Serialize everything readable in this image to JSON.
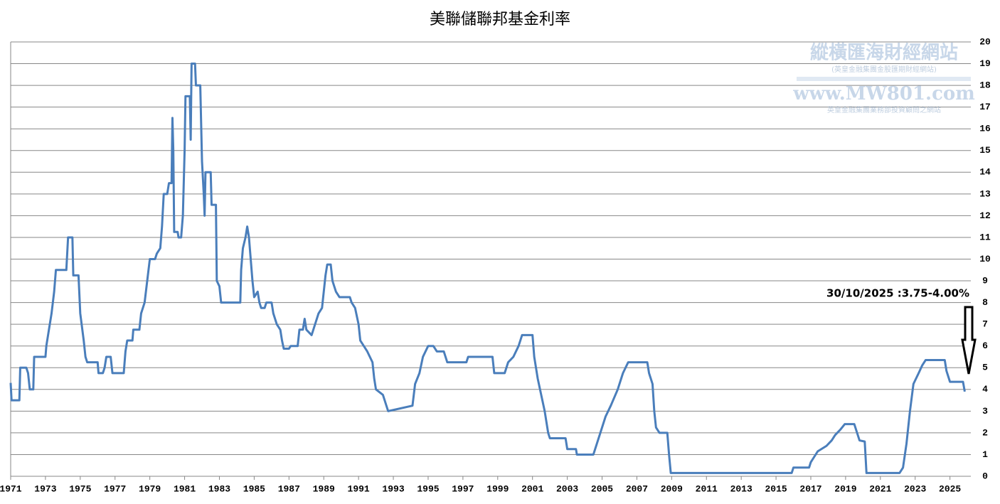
{
  "chart_data": {
    "type": "line",
    "title": "美聯儲聯邦基金利率",
    "annotation": "30/10/2025 :3.75-4.00%",
    "watermark": [
      "縱橫匯海財經網站",
      "(英皇金融集團金股匯期財經網站)",
      "www.MW801.com",
      "英皇金融集團業務部投資顧問之網站"
    ],
    "xlim": [
      1971,
      2026.2
    ],
    "xticks": [
      1971,
      1973,
      1975,
      1977,
      1979,
      1981,
      1983,
      1985,
      1987,
      1989,
      1991,
      1993,
      1995,
      1997,
      1999,
      2001,
      2003,
      2005,
      2007,
      2009,
      2011,
      2013,
      2015,
      2017,
      2019,
      2021,
      2023,
      2025
    ],
    "ylim": [
      0,
      20
    ],
    "yticks": [
      0,
      1,
      2,
      3,
      4,
      5,
      6,
      7,
      8,
      9,
      10,
      11,
      12,
      13,
      14,
      15,
      16,
      17,
      18,
      19,
      20
    ],
    "grid": true,
    "y_axis_side": "right",
    "x": [
      1971.0,
      1971.05,
      1971.5,
      1971.55,
      1971.9,
      1972.0,
      1972.1,
      1972.3,
      1972.35,
      1973.0,
      1973.05,
      1973.2,
      1973.35,
      1973.5,
      1973.6,
      1974.2,
      1974.3,
      1974.55,
      1974.6,
      1974.9,
      1975.0,
      1975.2,
      1975.3,
      1975.4,
      1976.0,
      1976.05,
      1976.3,
      1976.4,
      1976.5,
      1976.75,
      1976.85,
      1977.5,
      1977.6,
      1977.7,
      1978.0,
      1978.05,
      1978.4,
      1978.5,
      1978.7,
      1978.85,
      1979.0,
      1979.3,
      1979.4,
      1979.6,
      1979.7,
      1979.8,
      1980.0,
      1980.1,
      1980.25,
      1980.3,
      1980.35,
      1980.4,
      1980.6,
      1980.65,
      1980.8,
      1980.9,
      1981.0,
      1981.05,
      1981.3,
      1981.35,
      1981.4,
      1981.6,
      1981.65,
      1981.9,
      1982.0,
      1982.1,
      1982.15,
      1982.2,
      1982.5,
      1982.55,
      1982.8,
      1982.85,
      1983.0,
      1983.1,
      1984.2,
      1984.25,
      1984.35,
      1984.5,
      1984.6,
      1984.7,
      1984.8,
      1984.9,
      1985.0,
      1985.2,
      1985.3,
      1985.4,
      1985.6,
      1985.7,
      1986.0,
      1986.1,
      1986.3,
      1986.5,
      1986.6,
      1986.7,
      1987.0,
      1987.1,
      1987.5,
      1987.6,
      1987.8,
      1987.9,
      1988.0,
      1988.3,
      1988.5,
      1988.7,
      1988.9,
      1989.0,
      1989.1,
      1989.2,
      1989.4,
      1989.5,
      1989.7,
      1989.9,
      1990.5,
      1990.6,
      1990.8,
      1991.0,
      1991.1,
      1991.5,
      1991.8,
      1991.9,
      1992.0,
      1992.4,
      1992.7,
      1994.1,
      1994.25,
      1994.5,
      1994.7,
      1995.0,
      1995.3,
      1995.5,
      1995.9,
      1996.1,
      1997.2,
      1997.3,
      1998.7,
      1998.8,
      1999.4,
      1999.6,
      1999.9,
      2000.2,
      2000.4,
      2001.0,
      2001.1,
      2001.3,
      2001.5,
      2001.7,
      2001.9,
      2002.0,
      2002.9,
      2003.0,
      2003.5,
      2003.55,
      2004.5,
      2004.7,
      2004.9,
      2005.2,
      2005.5,
      2005.9,
      2006.2,
      2006.5,
      2007.6,
      2007.7,
      2007.9,
      2008.0,
      2008.1,
      2008.3,
      2008.75,
      2008.85,
      2008.95,
      2015.9,
      2016.0,
      2016.9,
      2017.0,
      2017.2,
      2017.4,
      2017.9,
      2018.2,
      2018.4,
      2018.7,
      2018.95,
      2019.5,
      2019.6,
      2019.8,
      2020.1,
      2020.2,
      2022.1,
      2022.3,
      2022.5,
      2022.7,
      2022.9,
      2023.2,
      2023.4,
      2023.6,
      2024.7,
      2024.8,
      2025.0,
      2025.75,
      2025.85
    ],
    "series": [
      {
        "name": "聯邦基金利率",
        "color": "#4a7ebb",
        "values": [
          4.3,
          3.5,
          3.5,
          5.0,
          5.0,
          4.75,
          4.0,
          4.0,
          5.5,
          5.5,
          6.0,
          6.75,
          7.5,
          8.5,
          9.5,
          9.5,
          11,
          11,
          9.25,
          9.25,
          7.5,
          6.25,
          5.5,
          5.25,
          5.25,
          4.75,
          4.75,
          5.0,
          5.5,
          5.5,
          4.75,
          4.75,
          5.75,
          6.25,
          6.25,
          6.75,
          6.75,
          7.5,
          8.0,
          9.0,
          10,
          10,
          10.25,
          10.5,
          11.5,
          13,
          13,
          13.5,
          13.5,
          16.5,
          15,
          11.25,
          11.25,
          11,
          11,
          12,
          15,
          17.5,
          17.5,
          15.5,
          19,
          19,
          18,
          18,
          14.5,
          13,
          12,
          14,
          14,
          12.5,
          12.5,
          9,
          8.75,
          8,
          8,
          9.5,
          10.5,
          11,
          11.5,
          11,
          10,
          9,
          8.25,
          8.5,
          8,
          7.75,
          7.75,
          8,
          8,
          7.5,
          7,
          6.75,
          6.25,
          5.875,
          5.875,
          6.0,
          6.0,
          6.75,
          6.75,
          7.25,
          6.75,
          6.5,
          7.0,
          7.5,
          7.75,
          8.5,
          9.25,
          9.75,
          9.75,
          9.0,
          8.5,
          8.25,
          8.25,
          8.0,
          7.75,
          7.0,
          6.25,
          5.75,
          5.25,
          4.5,
          4.0,
          3.75,
          3.0,
          3.25,
          4.25,
          4.75,
          5.5,
          6.0,
          6.0,
          5.75,
          5.75,
          5.25,
          5.25,
          5.5,
          5.5,
          4.75,
          4.75,
          5.25,
          5.5,
          6.0,
          6.5,
          6.5,
          5.5,
          4.5,
          3.75,
          3.0,
          2.0,
          1.75,
          1.75,
          1.25,
          1.25,
          1.0,
          1.0,
          1.5,
          2.0,
          2.75,
          3.25,
          4.0,
          4.75,
          5.25,
          5.25,
          4.75,
          4.25,
          3.0,
          2.25,
          2.0,
          2.0,
          1.0,
          0.15,
          0.15,
          0.4,
          0.4,
          0.65,
          0.9,
          1.15,
          1.4,
          1.65,
          1.9,
          2.15,
          2.4,
          2.4,
          2.15,
          1.65,
          1.6,
          0.15,
          0.15,
          0.4,
          1.5,
          3.0,
          4.25,
          4.75,
          5.1,
          5.35,
          5.35,
          4.85,
          4.35,
          4.35,
          3.9
        ]
      }
    ]
  }
}
